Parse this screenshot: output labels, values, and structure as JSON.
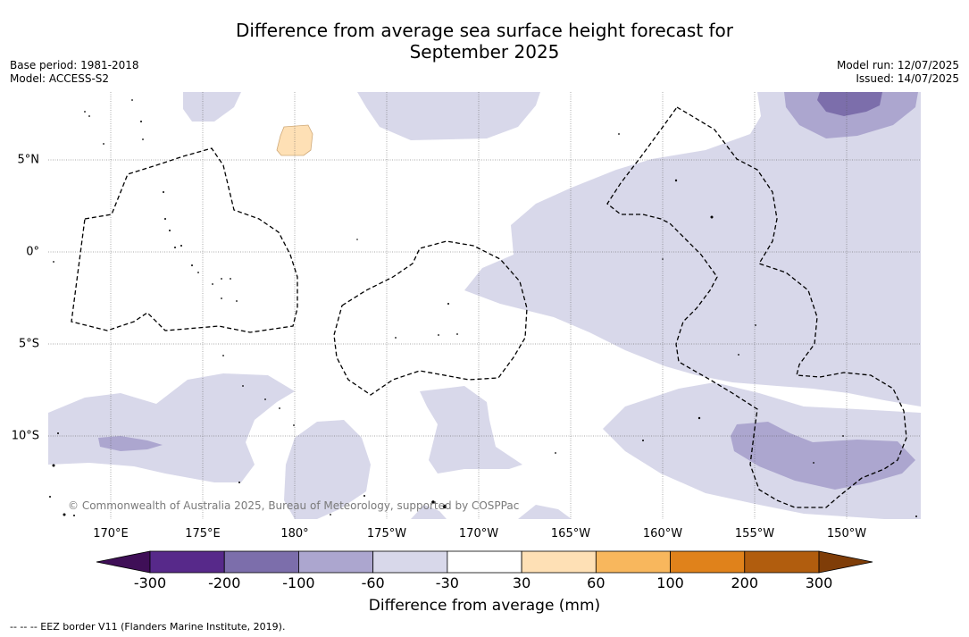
{
  "title_line1": "Difference from average sea surface height forecast for",
  "title_line2": "September 2025",
  "base_period": "Base period: 1981-2018",
  "model": "Model: ACCESS-S2",
  "model_run": "Model run: 12/07/2025",
  "issued": "Issued: 14/07/2025",
  "lat_labels": [
    "5°N",
    "0°",
    "5°S",
    "10°S"
  ],
  "lon_labels": [
    "170°E",
    "175°E",
    "180°",
    "175°W",
    "170°W",
    "165°W",
    "160°W",
    "155°W",
    "150°W"
  ],
  "copyright": "© Commonwealth of Australia 2025, Bureau of Meteorology, supported by COSPPac",
  "colorbar": {
    "ticks": [
      "-300",
      "-200",
      "-100",
      "-60",
      "-30",
      "30",
      "60",
      "100",
      "200",
      "300"
    ],
    "label": "Difference from average (mm)",
    "colors": [
      "#3f0f57",
      "#57298a",
      "#7c6eab",
      "#aca6cf",
      "#d8d8ea",
      "#ffffff",
      "#fee0b5",
      "#f8b75d",
      "#e0821b",
      "#b15d0e",
      "#7f3d08"
    ]
  },
  "legend_eez": "--  --  -- EEZ border V11 (Flanders Marine Institute, 2019)."
}
